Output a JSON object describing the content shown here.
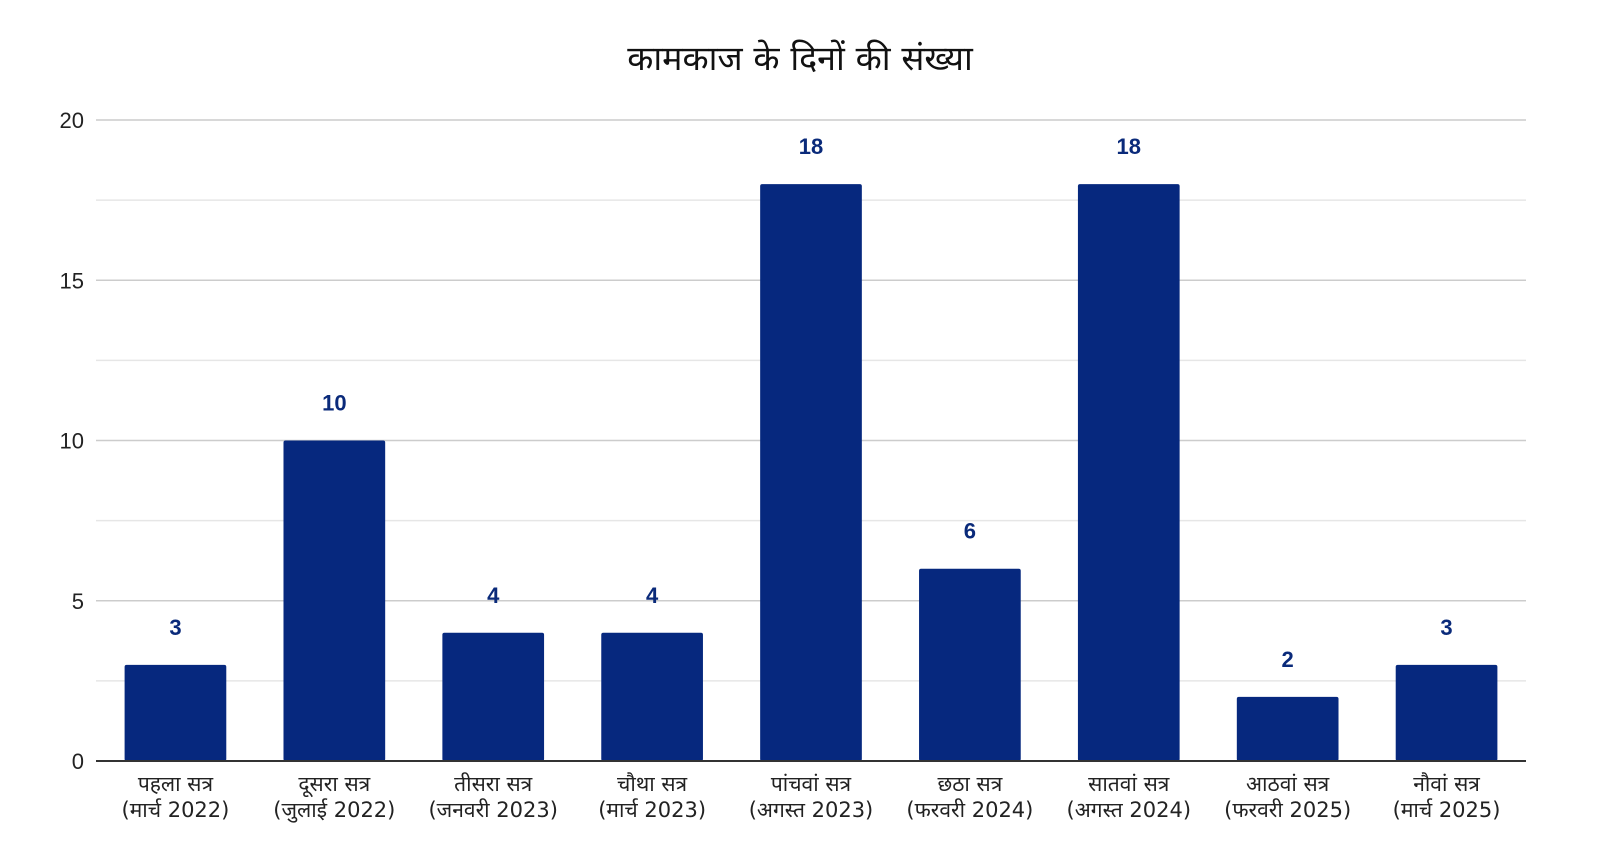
{
  "chart_data": {
    "type": "bar",
    "title": "कामकाज के दिनों की संख्या",
    "xlabel": "",
    "ylabel": "",
    "ylim": [
      0,
      20
    ],
    "yticks": [
      0,
      5,
      10,
      15,
      20
    ],
    "grid": true,
    "legend": "none",
    "bar_color": "#06287e",
    "label_color": "#0a2a7a",
    "categories": [
      [
        "पहला सत्र",
        "(मार्च 2022)"
      ],
      [
        "दूसरा सत्र",
        "(जुलाई 2022)"
      ],
      [
        "तीसरा सत्र",
        "(जनवरी 2023)"
      ],
      [
        "चौथा सत्र",
        "(मार्च 2023)"
      ],
      [
        "पांचवां सत्र",
        "(अगस्त 2023)"
      ],
      [
        "छठा सत्र",
        "(फरवरी 2024)"
      ],
      [
        "सातवां सत्र",
        "(अगस्त 2024)"
      ],
      [
        "आठवां सत्र",
        "(फरवरी 2025)"
      ],
      [
        "नौवां सत्र",
        "(मार्च 2025)"
      ]
    ],
    "values": [
      3,
      10,
      4,
      4,
      18,
      6,
      18,
      2,
      3
    ]
  }
}
